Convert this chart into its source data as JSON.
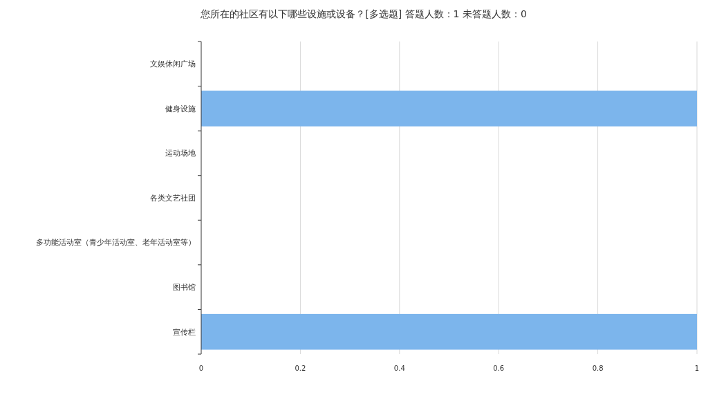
{
  "chart_data": {
    "type": "bar",
    "orientation": "horizontal",
    "title": "您所在的社区有以下哪些设施或设备？[多选题]  答题人数：1  未答题人数：0",
    "categories": [
      "文娱休闲广场",
      "健身设施",
      "运动场地",
      "各类文艺社团",
      "多功能活动室（青少年活动室、老年活动室等）",
      "图书馆",
      "宣传栏"
    ],
    "values": [
      0,
      1,
      0,
      0,
      0,
      0,
      1
    ],
    "color": "#7cb5ec",
    "xlim": [
      0,
      1
    ],
    "xticks": [
      0,
      0.2,
      0.4,
      0.6,
      0.8,
      1
    ],
    "grid": "x"
  }
}
